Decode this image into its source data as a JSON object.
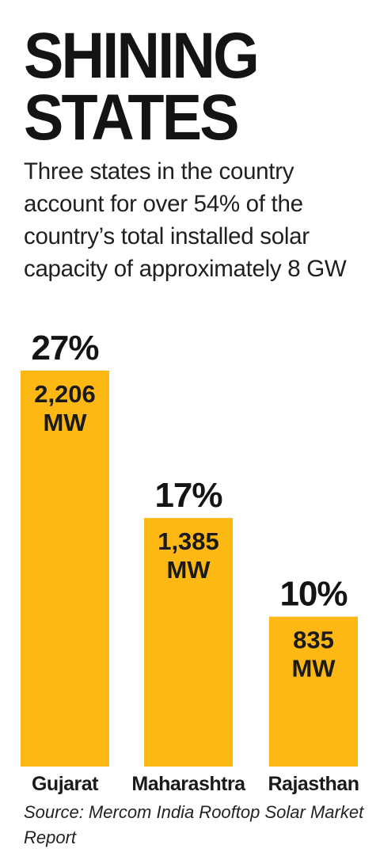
{
  "chart_data": {
    "type": "bar",
    "title": "SHINING STATES",
    "subtitle": "Three states in the country account for over 54% of the country’s total installed solar capacity of approximately 8 GW",
    "categories": [
      "Gujarat",
      "Maharashtra",
      "Rajasthan"
    ],
    "values": [
      2206,
      1385,
      835
    ],
    "value_labels": [
      [
        "2,206",
        "MW"
      ],
      [
        "1,385",
        "MW"
      ],
      [
        "835",
        "MW"
      ]
    ],
    "percent_labels": [
      "27%",
      "17%",
      "10%"
    ],
    "unit": "MW",
    "ylim": [
      0,
      2206
    ],
    "grid": false,
    "legend": "none",
    "bar_color": "#FDB813",
    "source": "Source: Mercom India Rooftop Solar Market Report"
  }
}
